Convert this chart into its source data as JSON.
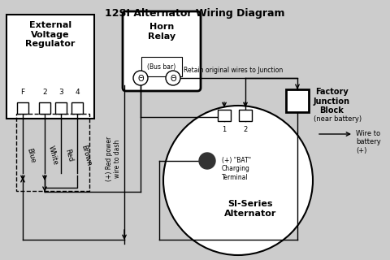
{
  "title": "12SI Alternator Wiring Diagram",
  "bg_color": "#cccccc",
  "line_color": "#000000",
  "box_fill": "#ffffff",
  "evr_label": "External\nVoltage\nRegulator",
  "horn_label": "Horn\nRelay",
  "alt_label": "SI-Series\nAlternator",
  "fjb_label": "Factory\nJunction\nBlock",
  "fjb_sub": "(near battery)",
  "bat_label": "Wire to\nbattery\n(+)",
  "bat_terminal_label": "(+) \"BAT\"\nCharging\nTerminal",
  "retain_label": "Retain original wires to Junction",
  "red_power_label": "(+) Red power\nwire to dash",
  "bus_bar_label": "(Bus bar)",
  "wire_colors": [
    "Blue",
    "White",
    "Red",
    "Brown"
  ],
  "terminal_labels": [
    "F",
    "2",
    "3",
    "4"
  ],
  "alt_terminals": [
    "1",
    "2"
  ],
  "figsize": [
    4.8,
    3.2
  ],
  "dpi": 100
}
